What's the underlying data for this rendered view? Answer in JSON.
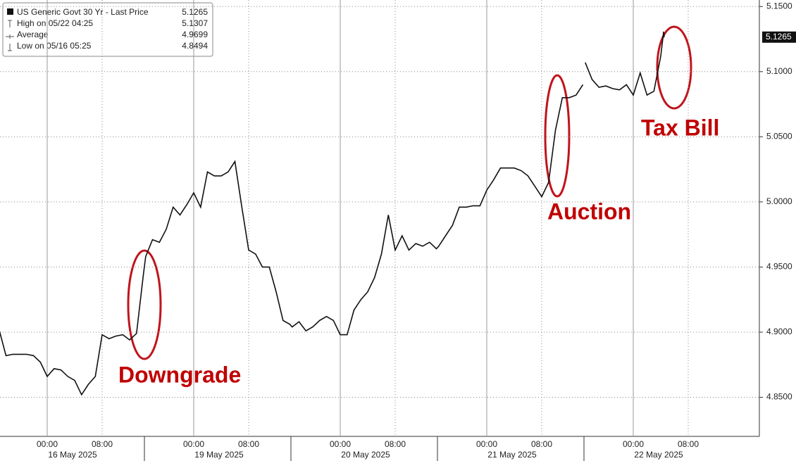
{
  "chart_data": {
    "type": "line",
    "series": [
      {
        "name": "US Generic Govt 30 Yr - Last Price",
        "color": "#111111",
        "values": [
          4.902,
          4.882,
          4.883,
          4.883,
          4.883,
          4.882,
          4.877,
          4.866,
          4.872,
          4.871,
          4.866,
          4.863,
          4.852,
          4.86,
          4.866,
          4.898,
          4.895,
          4.897,
          4.898,
          4.894,
          4.899,
          4.944,
          4.958,
          4.971,
          4.969,
          4.979,
          4.996,
          4.99,
          4.998,
          5.007,
          4.996,
          5.023,
          5.02,
          5.02,
          5.023,
          5.031,
          4.996,
          4.963,
          4.96,
          4.95,
          4.95,
          4.931,
          4.909,
          4.906,
          4.904,
          4.908,
          4.901,
          4.904,
          4.909,
          4.912,
          4.909,
          4.898,
          4.898,
          4.917,
          4.925,
          4.931,
          4.942,
          4.96,
          4.99,
          4.963,
          4.974,
          4.963,
          4.968,
          4.966,
          4.969,
          4.964,
          4.966,
          4.974,
          4.982,
          4.996,
          4.996,
          4.997,
          4.997,
          5.009,
          5.017,
          5.026,
          5.026,
          5.026,
          5.024,
          5.02,
          5.012,
          5.004,
          5.015,
          5.055,
          5.08,
          5.08,
          5.082,
          5.09,
          null,
          5.107,
          5.094,
          5.088,
          5.089,
          5.087,
          5.086,
          5.09,
          5.082,
          5.099,
          5.082,
          5.085,
          5.112,
          5.1307,
          5.1265
        ]
      }
    ],
    "x": [
      "15 May 2025 17:00",
      "15 May 2025 18:00",
      "15 May 2025 19:00",
      "15 May 2025 20:00",
      "15 May 2025 21:00",
      "15 May 2025 22:00",
      "15 May 2025 23:00",
      "16 May 2025 00:00",
      "16 May 2025 01:00",
      "16 May 2025 02:00",
      "16 May 2025 03:00",
      "16 May 2025 04:00",
      "16 May 2025 05:00",
      "16 May 2025 06:00",
      "16 May 2025 07:00",
      "16 May 2025 08:00",
      "16 May 2025 09:00",
      "16 May 2025 10:00",
      "16 May 2025 11:00",
      "16 May 2025 12:00",
      "16 May 2025 13:00",
      "16 May 2025 14:00",
      "18 May 2025 17:00",
      "18 May 2025 18:00",
      "18 May 2025 19:00",
      "18 May 2025 20:00",
      "18 May 2025 21:00",
      "18 May 2025 22:00",
      "18 May 2025 23:00",
      "19 May 2025 00:00",
      "19 May 2025 01:00",
      "19 May 2025 02:00",
      "19 May 2025 03:00",
      "19 May 2025 04:00",
      "19 May 2025 05:00",
      "19 May 2025 06:00",
      "19 May 2025 07:00",
      "19 May 2025 08:00",
      "19 May 2025 09:00",
      "19 May 2025 10:00",
      "19 May 2025 11:00",
      "19 May 2025 12:00",
      "19 May 2025 13:00",
      "19 May 2025 14:00",
      "19 May 2025 17:00",
      "19 May 2025 18:00",
      "19 May 2025 19:00",
      "19 May 2025 20:00",
      "19 May 2025 21:00",
      "19 May 2025 22:00",
      "19 May 2025 23:00",
      "20 May 2025 00:00",
      "20 May 2025 01:00",
      "20 May 2025 02:00",
      "20 May 2025 03:00",
      "20 May 2025 04:00",
      "20 May 2025 05:00",
      "20 May 2025 06:00",
      "20 May 2025 07:00",
      "20 May 2025 08:00",
      "20 May 2025 09:00",
      "20 May 2025 10:00",
      "20 May 2025 11:00",
      "20 May 2025 12:00",
      "20 May 2025 13:00",
      "20 May 2025 14:00",
      "20 May 2025 17:00",
      "20 May 2025 18:00",
      "20 May 2025 19:00",
      "20 May 2025 20:00",
      "20 May 2025 21:00",
      "20 May 2025 22:00",
      "20 May 2025 23:00",
      "21 May 2025 00:00",
      "21 May 2025 01:00",
      "21 May 2025 02:00",
      "21 May 2025 03:00",
      "21 May 2025 04:00",
      "21 May 2025 05:00",
      "21 May 2025 06:00",
      "21 May 2025 07:00",
      "21 May 2025 08:00",
      "21 May 2025 09:00",
      "21 May 2025 10:00",
      "21 May 2025 11:00",
      "21 May 2025 12:00",
      "21 May 2025 13:00",
      "21 May 2025 14:00",
      "21 May 2025 16:00",
      "21 May 2025 17:00",
      "21 May 2025 18:00",
      "21 May 2025 19:00",
      "21 May 2025 20:00",
      "21 May 2025 21:00",
      "21 May 2025 22:00",
      "21 May 2025 23:00",
      "22 May 2025 00:00",
      "22 May 2025 01:00",
      "22 May 2025 02:00",
      "22 May 2025 03:00",
      "22 May 2025 04:00",
      "22 May 2025 04:25",
      "22 May 2025 04:30"
    ],
    "xticks": [
      {
        "value": "16 May 2025 00:00",
        "label": "00:00"
      },
      {
        "value": "16 May 2025 08:00",
        "label": "08:00"
      },
      {
        "value": "19 May 2025 00:00",
        "label": "00:00"
      },
      {
        "value": "19 May 2025 08:00",
        "label": "08:00"
      },
      {
        "value": "20 May 2025 00:00",
        "label": "00:00"
      },
      {
        "value": "20 May 2025 08:00",
        "label": "08:00"
      },
      {
        "value": "21 May 2025 00:00",
        "label": "00:00"
      },
      {
        "value": "21 May 2025 08:00",
        "label": "08:00"
      },
      {
        "value": "22 May 2025 00:00",
        "label": "00:00"
      },
      {
        "value": "22 May 2025 08:00",
        "label": "08:00"
      }
    ],
    "x_dates": [
      "16 May 2025",
      "19 May 2025",
      "20 May 2025",
      "21 May 2025",
      "22 May 2025"
    ],
    "ylim": [
      4.82,
      5.155
    ],
    "yticks": [
      {
        "value": 4.85,
        "label": "4.8500"
      },
      {
        "value": 4.9,
        "label": "4.9000"
      },
      {
        "value": 4.95,
        "label": "4.9500"
      },
      {
        "value": 5.0,
        "label": "5.0000"
      },
      {
        "value": 5.05,
        "label": "5.0500"
      },
      {
        "value": 5.1,
        "label": "5.1000"
      },
      {
        "value": 5.15,
        "label": "5.1500"
      }
    ],
    "y_axis_side": "right",
    "grid": true,
    "last_price": 5.1265,
    "legend_stats": [
      {
        "label": "US Generic Govt 30 Yr - Last Price",
        "value": 5.1265
      },
      {
        "label": "High on 05/22 04:25",
        "value": 5.1307
      },
      {
        "label": "Average",
        "value": 4.9699
      },
      {
        "label": "Low on 05/16 05:25",
        "value": 4.8494
      }
    ],
    "annotations": [
      "Downgrade",
      "Auction",
      "Tax Bill"
    ]
  }
}
